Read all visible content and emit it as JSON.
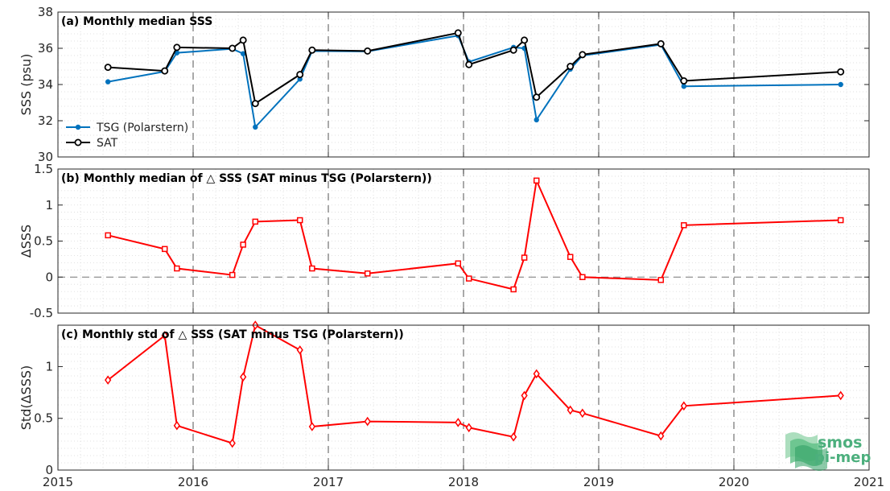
{
  "chart_data": [
    {
      "id": "a",
      "type": "line",
      "title": "(a) Monthly median SSS",
      "xlabel": "",
      "ylabel": "SSS (psu)",
      "xlim": [
        2015,
        2021
      ],
      "ylim": [
        30,
        38
      ],
      "yticks": [
        30,
        32,
        34,
        36,
        38
      ],
      "legend": "bottom-left",
      "series": [
        {
          "name": "TSG (Polarstern)",
          "color": "#0072bd",
          "marker": "dot",
          "x": [
            2015.37,
            2015.79,
            2015.88,
            2016.29,
            2016.37,
            2016.46,
            2016.79,
            2016.88,
            2017.29,
            2017.96,
            2018.04,
            2018.37,
            2018.45,
            2018.54,
            2018.79,
            2018.88,
            2019.46,
            2019.63,
            2020.79
          ],
          "y": [
            34.15,
            34.72,
            35.75,
            35.97,
            35.7,
            31.65,
            34.3,
            35.85,
            35.83,
            36.7,
            35.25,
            36.05,
            36.0,
            32.05,
            34.85,
            35.6,
            36.2,
            33.9,
            34.0
          ]
        },
        {
          "name": "SAT",
          "color": "#000000",
          "marker": "circle",
          "x": [
            2015.37,
            2015.79,
            2015.88,
            2016.29,
            2016.37,
            2016.46,
            2016.79,
            2016.88,
            2017.29,
            2017.96,
            2018.04,
            2018.37,
            2018.45,
            2018.54,
            2018.79,
            2018.88,
            2019.46,
            2019.63,
            2020.79
          ],
          "y": [
            34.95,
            34.75,
            36.05,
            36.0,
            36.45,
            32.95,
            34.55,
            35.9,
            35.85,
            36.85,
            35.1,
            35.9,
            36.45,
            33.3,
            35.0,
            35.65,
            36.25,
            34.2,
            34.7
          ]
        }
      ],
      "legend_labels": [
        "TSG (Polarstern)",
        "SAT"
      ]
    },
    {
      "id": "b",
      "type": "line",
      "title": "(b) Monthly median of △ SSS (SAT minus TSG (Polarstern))",
      "xlabel": "",
      "ylabel": "ΔSSS",
      "xlim": [
        2015,
        2021
      ],
      "ylim": [
        -0.5,
        1.5
      ],
      "yticks": [
        -0.5,
        0,
        0.5,
        1,
        1.5
      ],
      "series": [
        {
          "color": "#ff0000",
          "marker": "square",
          "x": [
            2015.37,
            2015.79,
            2015.88,
            2016.29,
            2016.37,
            2016.46,
            2016.79,
            2016.88,
            2017.29,
            2017.96,
            2018.04,
            2018.37,
            2018.45,
            2018.54,
            2018.79,
            2018.88,
            2019.46,
            2019.63,
            2020.79
          ],
          "y": [
            0.58,
            0.39,
            0.12,
            0.03,
            0.45,
            0.77,
            0.79,
            0.12,
            0.05,
            0.19,
            -0.02,
            -0.17,
            0.27,
            1.34,
            0.28,
            0.0,
            -0.04,
            0.72,
            0.79
          ]
        }
      ]
    },
    {
      "id": "c",
      "type": "line",
      "title": "(c) Monthly std of △ SSS (SAT minus TSG (Polarstern))",
      "xlabel": "",
      "ylabel": "Std(ΔSSS)",
      "xlim": [
        2015,
        2021
      ],
      "ylim": [
        0,
        1.4
      ],
      "yticks": [
        0,
        0.5,
        1
      ],
      "xticks": [
        2015,
        2016,
        2017,
        2018,
        2019,
        2020,
        2021
      ],
      "series": [
        {
          "color": "#ff0000",
          "marker": "diamond",
          "x": [
            2015.37,
            2015.79,
            2015.88,
            2016.29,
            2016.37,
            2016.46,
            2016.79,
            2016.88,
            2017.29,
            2017.96,
            2018.04,
            2018.37,
            2018.45,
            2018.54,
            2018.79,
            2018.88,
            2019.46,
            2019.63,
            2020.79
          ],
          "y": [
            0.87,
            1.3,
            0.43,
            0.26,
            0.9,
            1.4,
            1.16,
            0.42,
            0.47,
            0.46,
            0.41,
            0.32,
            0.72,
            0.93,
            0.58,
            0.55,
            0.33,
            0.62,
            0.72
          ]
        }
      ]
    }
  ],
  "logo": {
    "line1": "smos",
    "line2": "pi-mep",
    "color": "#4caf7d"
  }
}
